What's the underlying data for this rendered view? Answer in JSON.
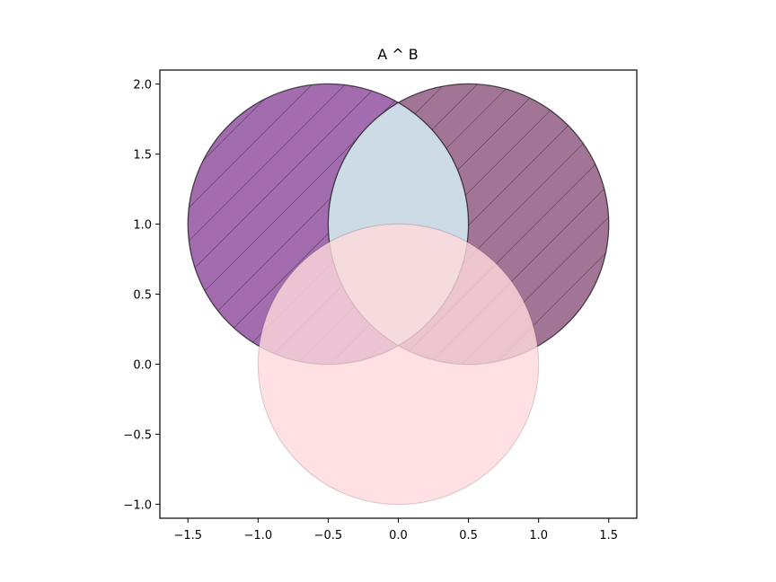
{
  "chart_data": {
    "type": "venn",
    "title": "A ^ B",
    "xlabel": "",
    "ylabel": "",
    "xlim": [
      -1.7,
      1.7
    ],
    "ylim": [
      -1.1,
      2.1
    ],
    "grid": false,
    "x_ticks": [
      -1.5,
      -1.0,
      -0.5,
      0.0,
      0.5,
      1.0,
      1.5
    ],
    "x_tick_labels": [
      "−1.5",
      "−1.0",
      "−0.5",
      "0.0",
      "0.5",
      "1.0",
      "1.5"
    ],
    "y_ticks": [
      -1.0,
      -0.5,
      0.0,
      0.5,
      1.0,
      1.5,
      2.0
    ],
    "y_tick_labels": [
      "−1.0",
      "−0.5",
      "0.0",
      "0.5",
      "1.0",
      "1.5",
      "2.0"
    ],
    "circles": [
      {
        "center": [
          -0.5,
          1.0
        ],
        "radius": 1.0,
        "fill": "#7b2d8b",
        "alpha": 0.7,
        "hatch": "/"
      },
      {
        "center": [
          0.5,
          1.0
        ],
        "radius": 1.0,
        "fill": "#7a3a6a",
        "alpha": 0.7,
        "hatch": "/"
      },
      {
        "center": [
          0.0,
          0.0
        ],
        "radius": 1.0,
        "fill": "#ffd9dc",
        "alpha": 0.8,
        "hatch": ""
      }
    ],
    "intersection_fill": "#ccdbe6",
    "edge_color": "#000000"
  }
}
